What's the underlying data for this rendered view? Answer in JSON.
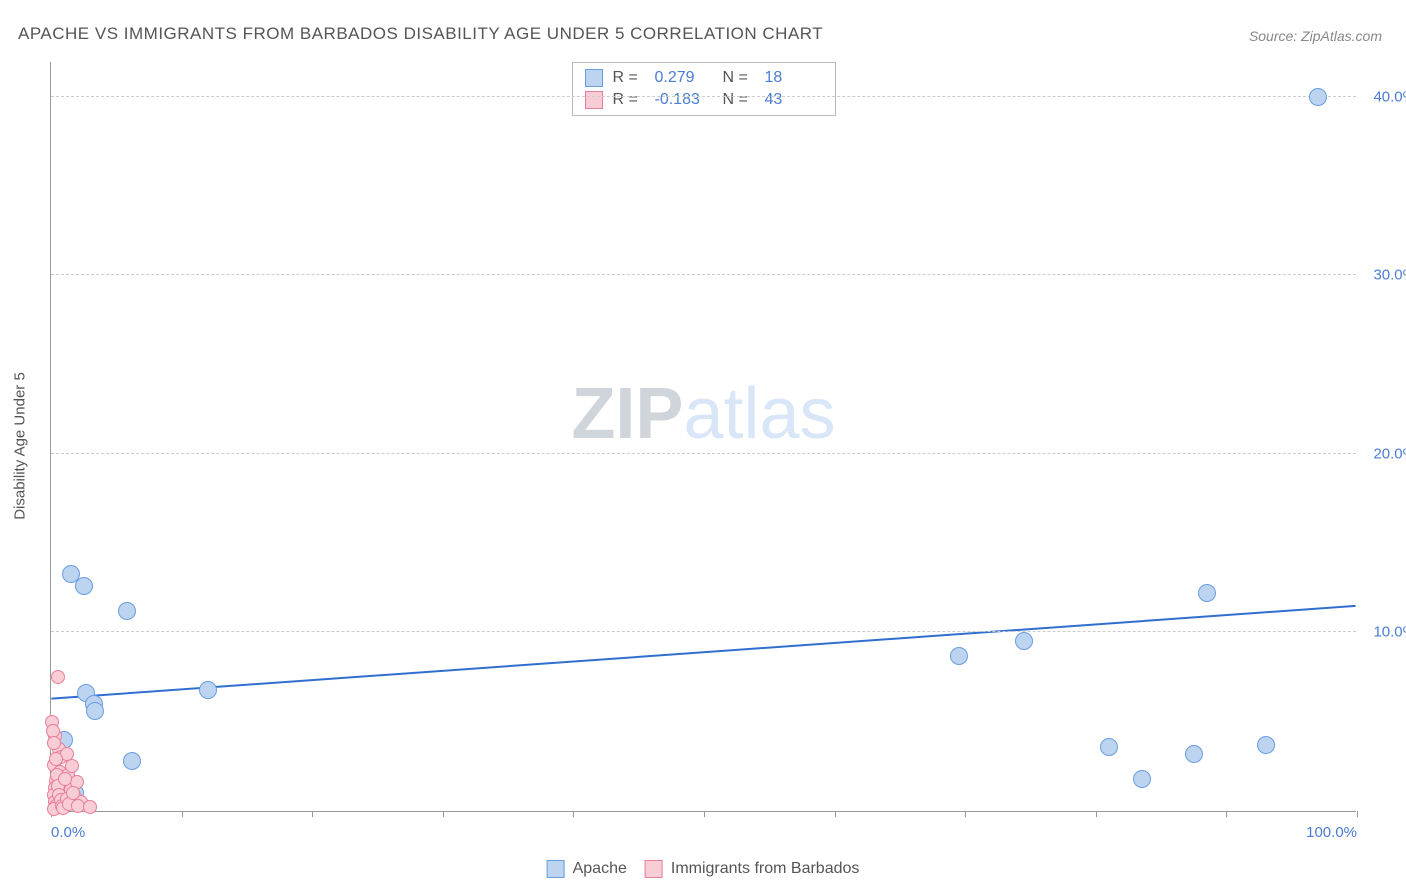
{
  "title": "APACHE VS IMMIGRANTS FROM BARBADOS DISABILITY AGE UNDER 5 CORRELATION CHART",
  "source": "Source: ZipAtlas.com",
  "ylabel": "Disability Age Under 5",
  "watermark": {
    "zip": "ZIP",
    "atlas": "atlas"
  },
  "chart": {
    "type": "scatter",
    "xlim": [
      0,
      100
    ],
    "ylim": [
      0,
      42
    ],
    "ytick_values": [
      10,
      20,
      30,
      40
    ],
    "ytick_labels": [
      "10.0%",
      "20.0%",
      "30.0%",
      "40.0%"
    ],
    "xtick_values": [
      0,
      10,
      20,
      30,
      40,
      50,
      60,
      70,
      80,
      90,
      100
    ],
    "xtick_labels_shown": {
      "0": "0.0%",
      "100": "100.0%"
    },
    "grid_color": "#cccccc",
    "axis_color": "#999999",
    "background_color": "#ffffff",
    "series": [
      {
        "name": "Apache",
        "fill": "#bcd4f0",
        "stroke": "#6a9de0",
        "marker_radius": 9,
        "R": "0.279",
        "N": "18",
        "trend": {
          "x1": 0,
          "y1": 6.3,
          "x2": 100,
          "y2": 11.5,
          "color": "#2f6fd0",
          "width": 2
        },
        "points": [
          {
            "x": 1.5,
            "y": 13.3
          },
          {
            "x": 2.5,
            "y": 12.6
          },
          {
            "x": 5.8,
            "y": 11.2
          },
          {
            "x": 2.7,
            "y": 6.6
          },
          {
            "x": 3.3,
            "y": 6.0
          },
          {
            "x": 3.4,
            "y": 5.6
          },
          {
            "x": 6.2,
            "y": 2.8
          },
          {
            "x": 1.8,
            "y": 1.0
          },
          {
            "x": 69.5,
            "y": 8.7
          },
          {
            "x": 74.5,
            "y": 9.5
          },
          {
            "x": 81.0,
            "y": 3.6
          },
          {
            "x": 83.5,
            "y": 1.8
          },
          {
            "x": 87.5,
            "y": 3.2
          },
          {
            "x": 88.5,
            "y": 12.2
          },
          {
            "x": 93.0,
            "y": 3.7
          },
          {
            "x": 97.0,
            "y": 40.0
          },
          {
            "x": 12.0,
            "y": 6.8
          },
          {
            "x": 1.0,
            "y": 4.0
          }
        ]
      },
      {
        "name": "Immigrants from Barbados",
        "fill": "#f8cdd6",
        "stroke": "#e87f9a",
        "marker_radius": 7,
        "R": "-0.183",
        "N": "43",
        "points": [
          {
            "x": 0.5,
            "y": 7.5
          },
          {
            "x": 0.3,
            "y": 4.2
          },
          {
            "x": 0.6,
            "y": 3.5
          },
          {
            "x": 0.8,
            "y": 3.0
          },
          {
            "x": 0.2,
            "y": 2.6
          },
          {
            "x": 0.7,
            "y": 2.2
          },
          {
            "x": 1.0,
            "y": 1.9
          },
          {
            "x": 0.4,
            "y": 1.7
          },
          {
            "x": 0.9,
            "y": 1.5
          },
          {
            "x": 0.3,
            "y": 1.3
          },
          {
            "x": 0.6,
            "y": 1.1
          },
          {
            "x": 0.2,
            "y": 0.9
          },
          {
            "x": 0.8,
            "y": 0.8
          },
          {
            "x": 0.5,
            "y": 0.7
          },
          {
            "x": 1.1,
            "y": 0.6
          },
          {
            "x": 0.3,
            "y": 0.5
          },
          {
            "x": 0.7,
            "y": 0.4
          },
          {
            "x": 0.4,
            "y": 0.3
          },
          {
            "x": 0.9,
            "y": 0.2
          },
          {
            "x": 0.2,
            "y": 0.1
          },
          {
            "x": 1.3,
            "y": 2.0
          },
          {
            "x": 1.5,
            "y": 1.2
          },
          {
            "x": 1.8,
            "y": 0.8
          },
          {
            "x": 2.0,
            "y": 1.6
          },
          {
            "x": 2.3,
            "y": 0.5
          },
          {
            "x": 1.2,
            "y": 3.2
          },
          {
            "x": 1.6,
            "y": 2.5
          },
          {
            "x": 0.1,
            "y": 5.0
          },
          {
            "x": 0.15,
            "y": 4.5
          },
          {
            "x": 0.25,
            "y": 3.8
          },
          {
            "x": 0.35,
            "y": 2.9
          },
          {
            "x": 0.45,
            "y": 2.0
          },
          {
            "x": 0.55,
            "y": 1.4
          },
          {
            "x": 0.65,
            "y": 0.9
          },
          {
            "x": 0.75,
            "y": 0.6
          },
          {
            "x": 0.85,
            "y": 0.3
          },
          {
            "x": 0.95,
            "y": 0.15
          },
          {
            "x": 1.05,
            "y": 1.8
          },
          {
            "x": 1.25,
            "y": 0.7
          },
          {
            "x": 1.4,
            "y": 0.4
          },
          {
            "x": 1.7,
            "y": 1.0
          },
          {
            "x": 2.1,
            "y": 0.3
          },
          {
            "x": 3.0,
            "y": 0.2
          }
        ]
      }
    ]
  },
  "legend_bottom": [
    {
      "label": "Apache",
      "color": "#bcd4f0",
      "border": "#6a9de0"
    },
    {
      "label": "Immigrants from Barbados",
      "color": "#f8cdd6",
      "border": "#e87f9a"
    }
  ]
}
